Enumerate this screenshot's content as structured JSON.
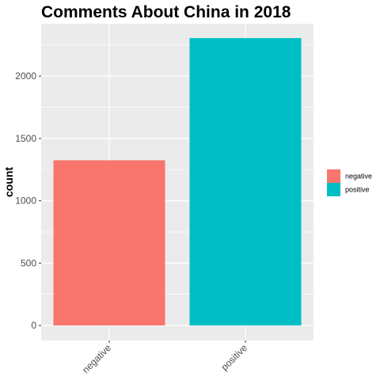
{
  "chart_data": {
    "type": "bar",
    "title": "Comments About China in 2018",
    "xlabel": "",
    "ylabel": "count",
    "categories": [
      "negative",
      "positive"
    ],
    "values": [
      1325,
      2305
    ],
    "colors": [
      "#F8766D",
      "#00BFC4"
    ],
    "ylim": [
      -120,
      2420
    ],
    "yticks": [
      0,
      500,
      1000,
      1500,
      2000
    ],
    "grid": true,
    "legend": {
      "position": "right",
      "entries": [
        {
          "label": "negative",
          "color": "#F8766D"
        },
        {
          "label": "positive",
          "color": "#00BFC4"
        }
      ]
    }
  }
}
